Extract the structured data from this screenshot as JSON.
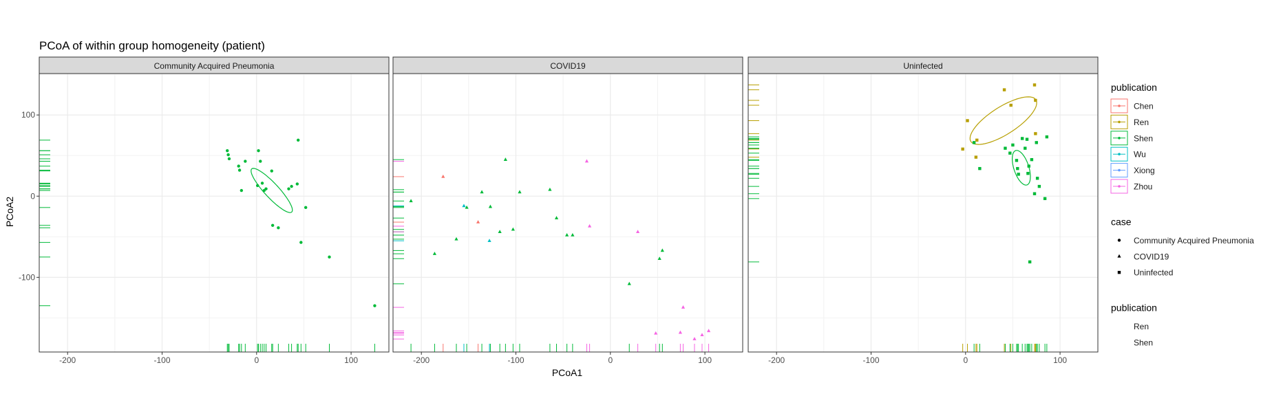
{
  "chart_data": {
    "type": "scatter",
    "title": "PCoA of within group homogeneity (patient)",
    "xlabel": "PCoA1",
    "ylabel": "PCoA2",
    "xlim": [
      -230,
      140
    ],
    "ylim": [
      -192,
      151
    ],
    "x_ticks": [
      -200,
      -100,
      0,
      100
    ],
    "y_ticks": [
      -100,
      0,
      100
    ],
    "grid": true,
    "legend_placement": "right",
    "facets": [
      {
        "name": "Community Acquired Pneumonia",
        "shape": "circle",
        "points": [
          {
            "x": -31,
            "y": 56,
            "pub": "Shen"
          },
          {
            "x": -30,
            "y": 51,
            "pub": "Shen"
          },
          {
            "x": -29,
            "y": 46,
            "pub": "Shen"
          },
          {
            "x": -19,
            "y": 37,
            "pub": "Shen"
          },
          {
            "x": -18,
            "y": 32,
            "pub": "Shen"
          },
          {
            "x": -16,
            "y": 7,
            "pub": "Shen"
          },
          {
            "x": -12,
            "y": 43,
            "pub": "Shen"
          },
          {
            "x": 1,
            "y": 13,
            "pub": "Shen"
          },
          {
            "x": 2,
            "y": 56,
            "pub": "Shen"
          },
          {
            "x": 4,
            "y": 43,
            "pub": "Shen"
          },
          {
            "x": 6,
            "y": 16,
            "pub": "Shen"
          },
          {
            "x": 8,
            "y": 7,
            "pub": "Shen"
          },
          {
            "x": 10,
            "y": 9,
            "pub": "Shen"
          },
          {
            "x": 16,
            "y": 31,
            "pub": "Shen"
          },
          {
            "x": 17,
            "y": -36,
            "pub": "Shen"
          },
          {
            "x": 23,
            "y": -39,
            "pub": "Shen"
          },
          {
            "x": 34,
            "y": 9,
            "pub": "Shen"
          },
          {
            "x": 37,
            "y": 12,
            "pub": "Shen"
          },
          {
            "x": 43,
            "y": 15,
            "pub": "Shen"
          },
          {
            "x": 44,
            "y": 69,
            "pub": "Shen"
          },
          {
            "x": 47,
            "y": -57,
            "pub": "Shen"
          },
          {
            "x": 52,
            "y": -14,
            "pub": "Shen"
          },
          {
            "x": 77,
            "y": -75,
            "pub": "Shen"
          },
          {
            "x": 125,
            "y": -135,
            "pub": "Shen"
          }
        ],
        "ellipses": [
          {
            "pub": "Shen",
            "cx": 16,
            "cy": 7,
            "rx": 34,
            "ry": 8,
            "angle": -52
          }
        ]
      },
      {
        "name": "COVID19",
        "shape": "triangle",
        "points": [
          {
            "x": -211,
            "y": -6,
            "pub": "Shen"
          },
          {
            "x": -186,
            "y": -71,
            "pub": "Shen"
          },
          {
            "x": -177,
            "y": 24,
            "pub": "Chen"
          },
          {
            "x": -163,
            "y": -53,
            "pub": "Shen"
          },
          {
            "x": -155,
            "y": -12,
            "pub": "Wu"
          },
          {
            "x": -152,
            "y": -14,
            "pub": "Shen"
          },
          {
            "x": -140,
            "y": -32,
            "pub": "Chen"
          },
          {
            "x": -136,
            "y": 5,
            "pub": "Shen"
          },
          {
            "x": -128,
            "y": -55,
            "pub": "Wu"
          },
          {
            "x": -127,
            "y": -13,
            "pub": "Shen"
          },
          {
            "x": -117,
            "y": -44,
            "pub": "Shen"
          },
          {
            "x": -111,
            "y": 45,
            "pub": "Shen"
          },
          {
            "x": -103,
            "y": -41,
            "pub": "Shen"
          },
          {
            "x": -96,
            "y": 5,
            "pub": "Shen"
          },
          {
            "x": -64,
            "y": 8,
            "pub": "Shen"
          },
          {
            "x": -57,
            "y": -27,
            "pub": "Shen"
          },
          {
            "x": -46,
            "y": -48,
            "pub": "Shen"
          },
          {
            "x": -40,
            "y": -48,
            "pub": "Shen"
          },
          {
            "x": -25,
            "y": 43,
            "pub": "Zhou"
          },
          {
            "x": -22,
            "y": -37,
            "pub": "Zhou"
          },
          {
            "x": 20,
            "y": -108,
            "pub": "Shen"
          },
          {
            "x": 29,
            "y": -44,
            "pub": "Zhou"
          },
          {
            "x": 48,
            "y": -169,
            "pub": "Zhou"
          },
          {
            "x": 52,
            "y": -77,
            "pub": "Shen"
          },
          {
            "x": 55,
            "y": -67,
            "pub": "Shen"
          },
          {
            "x": 74,
            "y": -168,
            "pub": "Zhou"
          },
          {
            "x": 77,
            "y": -137,
            "pub": "Zhou"
          },
          {
            "x": 89,
            "y": -176,
            "pub": "Zhou"
          },
          {
            "x": 97,
            "y": -171,
            "pub": "Zhou"
          },
          {
            "x": 104,
            "y": -166,
            "pub": "Zhou"
          }
        ],
        "ellipses": []
      },
      {
        "name": "Uninfected",
        "shape": "square",
        "points": [
          {
            "x": -3,
            "y": 58,
            "pub": "Ren"
          },
          {
            "x": 2,
            "y": 93,
            "pub": "Ren"
          },
          {
            "x": 9,
            "y": 66,
            "pub": "Shen"
          },
          {
            "x": 11,
            "y": 48,
            "pub": "Ren"
          },
          {
            "x": 12,
            "y": 69,
            "pub": "Ren"
          },
          {
            "x": 15,
            "y": 34,
            "pub": "Shen"
          },
          {
            "x": 41,
            "y": 131,
            "pub": "Ren"
          },
          {
            "x": 42,
            "y": 59,
            "pub": "Shen"
          },
          {
            "x": 47,
            "y": 53,
            "pub": "Shen"
          },
          {
            "x": 48,
            "y": 112,
            "pub": "Ren"
          },
          {
            "x": 50,
            "y": 63,
            "pub": "Shen"
          },
          {
            "x": 54,
            "y": 44,
            "pub": "Shen"
          },
          {
            "x": 55,
            "y": 34,
            "pub": "Shen"
          },
          {
            "x": 56,
            "y": 27,
            "pub": "Shen"
          },
          {
            "x": 60,
            "y": 71,
            "pub": "Shen"
          },
          {
            "x": 63,
            "y": 59,
            "pub": "Shen"
          },
          {
            "x": 65,
            "y": 70,
            "pub": "Shen"
          },
          {
            "x": 66,
            "y": 28,
            "pub": "Shen"
          },
          {
            "x": 67,
            "y": 37,
            "pub": "Shen"
          },
          {
            "x": 68,
            "y": -81,
            "pub": "Shen"
          },
          {
            "x": 70,
            "y": 45,
            "pub": "Shen"
          },
          {
            "x": 73,
            "y": 3,
            "pub": "Shen"
          },
          {
            "x": 73,
            "y": 137,
            "pub": "Ren"
          },
          {
            "x": 74,
            "y": 118,
            "pub": "Ren"
          },
          {
            "x": 74,
            "y": 77,
            "pub": "Ren"
          },
          {
            "x": 75,
            "y": 66,
            "pub": "Shen"
          },
          {
            "x": 76,
            "y": 22,
            "pub": "Shen"
          },
          {
            "x": 78,
            "y": 12,
            "pub": "Shen"
          },
          {
            "x": 84,
            "y": -3,
            "pub": "Shen"
          },
          {
            "x": 86,
            "y": 73,
            "pub": "Shen"
          }
        ],
        "ellipses": [
          {
            "pub": "Ren",
            "cx": 40,
            "cy": 93,
            "rx": 43,
            "ry": 16,
            "angle": 38
          },
          {
            "pub": "Shen",
            "cx": 59,
            "cy": 35,
            "rx": 22,
            "ry": 8,
            "angle": -75
          }
        ]
      }
    ],
    "legends": [
      {
        "title": "publication",
        "entries": [
          {
            "label": "Chen",
            "color": "#F8766D"
          },
          {
            "label": "Ren",
            "color": "#B79F00"
          },
          {
            "label": "Shen",
            "color": "#00BA38"
          },
          {
            "label": "Wu",
            "color": "#00BFC4"
          },
          {
            "label": "Xiong",
            "color": "#619CFF"
          },
          {
            "label": "Zhou",
            "color": "#F564E3"
          }
        ]
      },
      {
        "title": "case",
        "entries": [
          {
            "label": "Community Acquired Pneumonia",
            "shape": "circle"
          },
          {
            "label": "COVID19",
            "shape": "triangle"
          },
          {
            "label": "Uninfected",
            "shape": "square"
          }
        ]
      },
      {
        "title": "publication",
        "entries": [
          {
            "label": "Ren"
          },
          {
            "label": "Shen"
          }
        ]
      }
    ]
  }
}
